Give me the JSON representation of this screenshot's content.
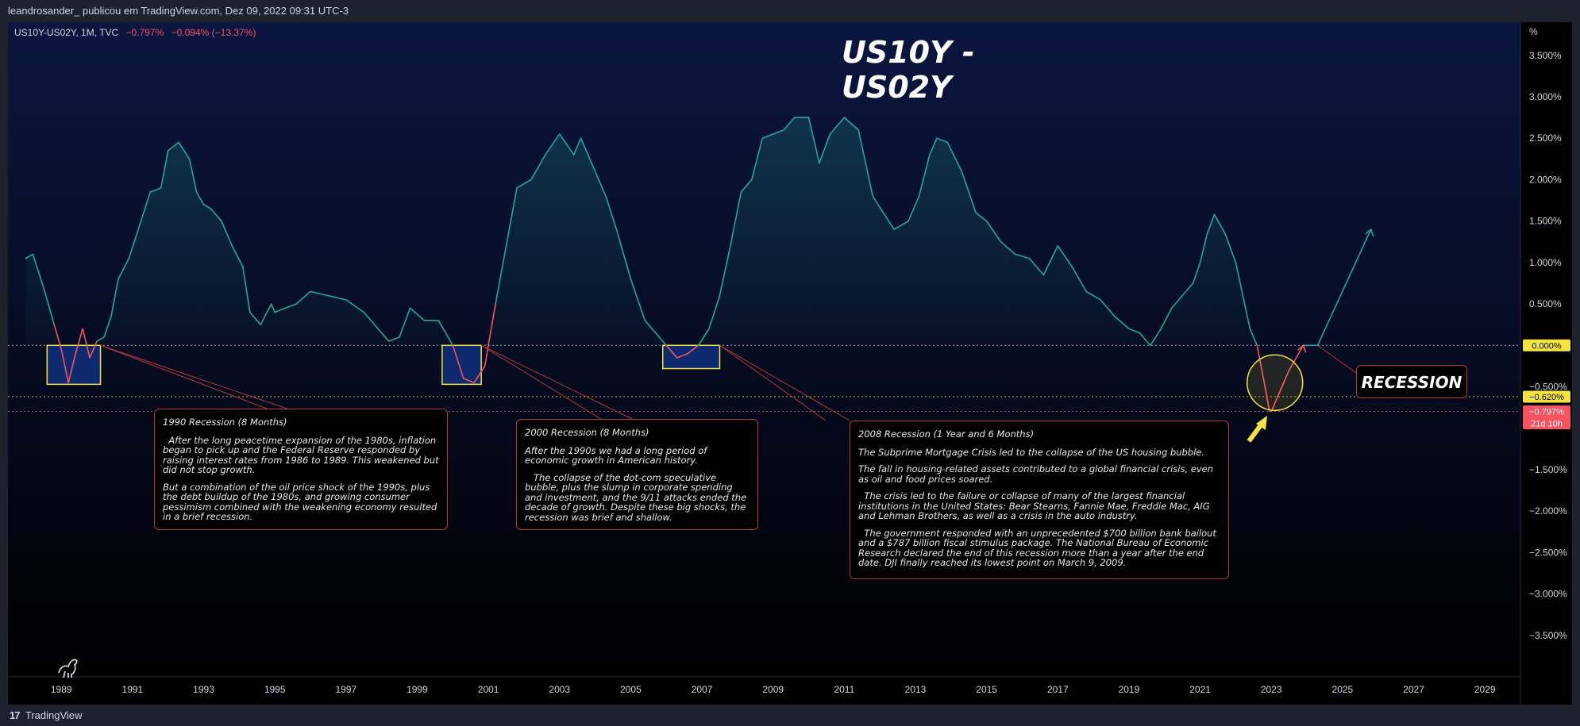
{
  "header": {
    "publish_line": "leandrosander_ publicou em TradingView.com, Dez 09, 2022 09:31 UTC-3"
  },
  "legend": {
    "symbol": "US10Y-US02Y, 1M, TVC",
    "last": "−0.797%",
    "change": "−0.094% (−13.37%)"
  },
  "footer": {
    "brand": "TradingView"
  },
  "colors": {
    "line": "#26a69a",
    "negative": "#f7525f",
    "box_border": "#f5e342",
    "box_fill": "#0d2a6e",
    "annotation_border": "#b33a3a"
  },
  "chart_data": {
    "type": "line",
    "title": "US10Y - US02Y",
    "unit_label": "%",
    "x_ticks": [
      "1989",
      "1991",
      "1993",
      "1995",
      "1997",
      "1999",
      "2001",
      "2003",
      "2005",
      "2007",
      "2009",
      "2011",
      "2013",
      "2015",
      "2017",
      "2019",
      "2021",
      "2023",
      "2025",
      "2027",
      "2029"
    ],
    "y_ticks": [
      "3.500%",
      "3.000%",
      "2.500%",
      "2.000%",
      "1.500%",
      "1.000%",
      "0.500%",
      "",
      "−0.500%",
      "",
      "−1.500%",
      "−2.000%",
      "−2.500%",
      "−3.000%",
      "−3.500%"
    ],
    "y_tick_values": [
      3.5,
      3.0,
      2.5,
      2.0,
      1.5,
      1.0,
      0.5,
      0.0,
      -0.5,
      -1.0,
      -1.5,
      -2.0,
      -2.5,
      -3.0,
      -3.5
    ],
    "ylim": [
      -4.0,
      3.9
    ],
    "xlim": [
      1987.5,
      2030
    ],
    "series": [
      {
        "x": [
          1988.0,
          1988.2,
          1988.5,
          1988.8,
          1989.0,
          1989.2,
          1989.4,
          1989.6,
          1989.8,
          1990.0,
          1990.2,
          1990.4,
          1990.6,
          1990.9,
          1991.2,
          1991.5,
          1991.8,
          1992.0,
          1992.3,
          1992.6,
          1992.8,
          1993.0,
          1993.2,
          1993.5,
          1993.8,
          1994.1,
          1994.3,
          1994.6,
          1994.9,
          1995.0,
          1995.3,
          1995.6,
          1996.0,
          1996.5,
          1997.0,
          1997.5,
          1997.9,
          1998.2,
          1998.5,
          1998.8,
          1999.2,
          1999.6,
          2000.0,
          2000.3,
          2000.6,
          2000.9,
          2001.2,
          2001.5,
          2001.8,
          2002.2,
          2002.6,
          2003.0,
          2003.4,
          2003.6,
          2003.9,
          2004.3,
          2004.6,
          2005.0,
          2005.4,
          2005.7,
          2006.0,
          2006.3,
          2006.6,
          2006.9,
          2007.2,
          2007.5,
          2007.8,
          2008.1,
          2008.4,
          2008.7,
          2009.0,
          2009.3,
          2009.6,
          2010.0,
          2010.3,
          2010.6,
          2011.0,
          2011.4,
          2011.8,
          2012.1,
          2012.4,
          2012.8,
          2013.1,
          2013.4,
          2013.6,
          2013.9,
          2014.3,
          2014.7,
          2015.0,
          2015.4,
          2015.8,
          2016.2,
          2016.6,
          2017.0,
          2017.4,
          2017.8,
          2018.2,
          2018.6,
          2019.0,
          2019.3,
          2019.6,
          2019.9,
          2020.2,
          2020.5,
          2020.8,
          2021.0,
          2021.2,
          2021.4,
          2021.7,
          2022.0,
          2022.2,
          2022.4,
          2022.6,
          2022.8,
          2022.95
        ],
        "y": [
          1.05,
          1.1,
          0.7,
          0.25,
          -0.05,
          -0.45,
          -0.1,
          0.2,
          -0.15,
          0.05,
          0.1,
          0.35,
          0.8,
          1.05,
          1.45,
          1.85,
          1.9,
          2.35,
          2.45,
          2.25,
          1.85,
          1.7,
          1.65,
          1.5,
          1.2,
          0.95,
          0.4,
          0.25,
          0.5,
          0.4,
          0.45,
          0.5,
          0.65,
          0.6,
          0.55,
          0.4,
          0.2,
          0.05,
          0.1,
          0.45,
          0.3,
          0.3,
          0.0,
          -0.4,
          -0.45,
          -0.25,
          0.5,
          1.2,
          1.9,
          2.0,
          2.3,
          2.55,
          2.3,
          2.5,
          2.2,
          1.8,
          1.4,
          0.8,
          0.3,
          0.15,
          0.0,
          -0.15,
          -0.1,
          0.0,
          0.2,
          0.6,
          1.2,
          1.85,
          2.0,
          2.5,
          2.55,
          2.6,
          2.75,
          2.75,
          2.2,
          2.55,
          2.75,
          2.6,
          1.8,
          1.6,
          1.4,
          1.5,
          1.8,
          2.3,
          2.5,
          2.45,
          2.1,
          1.6,
          1.5,
          1.25,
          1.1,
          1.05,
          0.85,
          1.2,
          0.95,
          0.65,
          0.55,
          0.35,
          0.2,
          0.15,
          0.0,
          0.2,
          0.45,
          0.6,
          0.75,
          1.0,
          1.35,
          1.58,
          1.35,
          1.0,
          0.6,
          0.2,
          0.0,
          -0.45,
          -0.797
        ]
      }
    ],
    "projection": {
      "x": [
        2023.0,
        2023.5,
        2023.9,
        2024.3,
        2025.8
      ],
      "y": [
        -0.797,
        -0.3,
        0.0,
        0.0,
        1.4
      ]
    },
    "horizontal_lines": [
      {
        "value": 0.0,
        "label": "0.000%"
      },
      {
        "value": -0.62,
        "label": "−0.620%"
      },
      {
        "value": -0.797,
        "label": "−0.797%",
        "sublabel": "21d 10h"
      }
    ],
    "highlight_boxes": [
      {
        "x0": 1988.6,
        "x1": 1990.1,
        "y0": 0.0,
        "y1": -0.47
      },
      {
        "x0": 1999.7,
        "x1": 2000.8,
        "y0": 0.0,
        "y1": -0.47
      },
      {
        "x0": 2005.9,
        "x1": 2007.5,
        "y0": 0.0,
        "y1": -0.28
      }
    ],
    "circle": {
      "x": 2023.1,
      "y": -0.45
    },
    "annotations": [
      {
        "title": "1990 Recession (8 Months)",
        "paragraphs": [
          "  After the long peacetime expansion of the 1980s, inflation began to pick up and the Federal Reserve responded by raising interest rates from 1986 to 1989. This weakened but did not stop growth.",
          "But a combination of the oil price shock of the 1990s, plus the debt buildup of the 1980s, and growing consumer pessimism combined with the weakening economy resulted in a brief recession."
        ]
      },
      {
        "title": "2000 Recession (8 Months)",
        "paragraphs": [
          "After the 1990s we had a long period of economic growth in American history.",
          "   The collapse of the dot-com speculative bubble, plus the slump in corporate spending and investment, and the 9/11 attacks ended the decade of growth. Despite these big shocks, the recession was brief and shallow."
        ]
      },
      {
        "title": "2008 Recession (1 Year and 6 Months)",
        "paragraphs": [
          "The Subprime Mortgage Crisis led to the collapse of the US housing bubble.",
          "The fall in housing-related assets contributed to a global financial crisis, even as oil and food prices soared.",
          "  The crisis led to the failure or collapse of many of the largest financial institutions in the United States: Bear Stearns, Fannie Mae, Freddie Mac, AIG and Lehman Brothers, as well as a crisis in the auto industry.",
          "  The government responded with an unprecedented $700 billion bank bailout and a $787 billion fiscal stimulus package. The National Bureau of Economic Research declared the end of this recession more than a year after the end date. DJI finally reached its lowest point on March 9, 2009."
        ]
      }
    ],
    "recession_label": "RECESSION",
    "grid": false
  }
}
